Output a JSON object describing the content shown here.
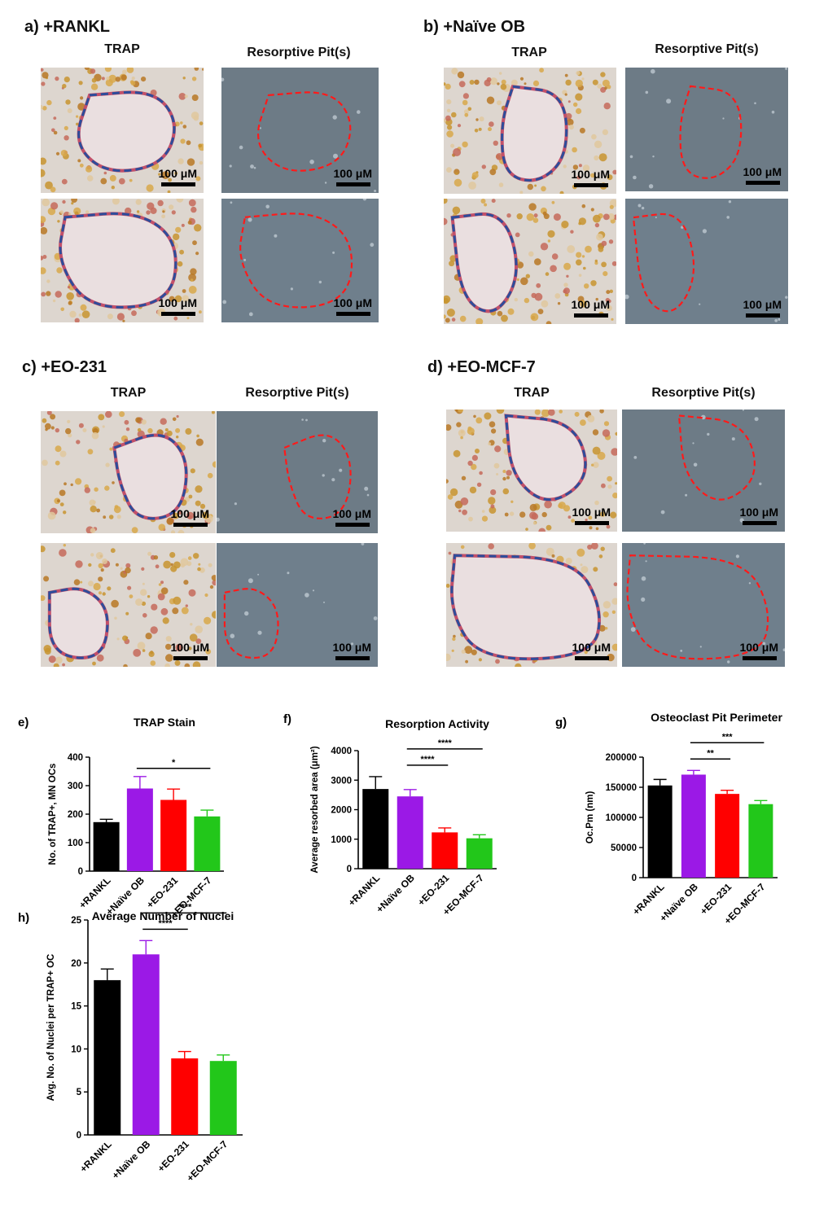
{
  "figure": {
    "panels": [
      {
        "id": "a",
        "label": "a) +RANKL",
        "left_heading": "TRAP",
        "right_heading": "Resorptive Pit(s)"
      },
      {
        "id": "b",
        "label": "b) +Naïve OB",
        "left_heading": "TRAP",
        "right_heading": "Resorptive Pit(s)"
      },
      {
        "id": "c",
        "label": "c) +EO-231",
        "left_heading": "TRAP",
        "right_heading": "Resorptive Pit(s)"
      },
      {
        "id": "d",
        "label": "d) +EO-MCF-7",
        "left_heading": "TRAP",
        "right_heading": "Resorptive Pit(s)"
      }
    ],
    "scale_bar_label": "100 μM"
  },
  "chart_data": [
    {
      "id": "e",
      "panel_letter": "e)",
      "type": "bar",
      "title": "TRAP Stain",
      "ylabel": "No. of TRAP+, MN OCs",
      "categories": [
        "+RANKL",
        "+Naïve OB",
        "+EO-231",
        "+EO-MCF-7"
      ],
      "values": [
        172,
        290,
        250,
        192
      ],
      "errors": [
        10,
        42,
        38,
        22
      ],
      "colors": [
        "#000000",
        "#9b19e6",
        "#ff0000",
        "#22c71a"
      ],
      "ylim": [
        0,
        400
      ],
      "yticks": [
        "0",
        "100",
        "200",
        "300",
        "400"
      ],
      "significance": [
        {
          "from": 1,
          "to": 3,
          "label": "*"
        }
      ]
    },
    {
      "id": "f",
      "panel_letter": "f)",
      "type": "bar",
      "title": "Resorption Activity",
      "ylabel": "Average resorbed area (μm²)",
      "categories": [
        "+RANKL",
        "+Naïve OB",
        "+EO-231",
        "+EO-MCF-7"
      ],
      "values": [
        2700,
        2450,
        1230,
        1030
      ],
      "errors": [
        420,
        230,
        150,
        120
      ],
      "colors": [
        "#000000",
        "#9b19e6",
        "#ff0000",
        "#22c71a"
      ],
      "ylim": [
        0,
        4000
      ],
      "yticks": [
        "0",
        "1000",
        "2000",
        "3000",
        "4000"
      ],
      "significance": [
        {
          "from": 1,
          "to": 2,
          "label": "****"
        },
        {
          "from": 1,
          "to": 3,
          "label": "****"
        }
      ]
    },
    {
      "id": "g",
      "panel_letter": "g)",
      "type": "bar",
      "title": "Osteoclast Pit Perimeter",
      "ylabel": "Oc.Pm (nm)",
      "categories": [
        "+RANKL",
        "+Naïve OB",
        "+EO-231",
        "+EO-MCF-7"
      ],
      "values": [
        153000,
        171000,
        139000,
        122000
      ],
      "errors": [
        10000,
        7000,
        6000,
        6000
      ],
      "colors": [
        "#000000",
        "#9b19e6",
        "#ff0000",
        "#22c71a"
      ],
      "ylim": [
        0,
        200000
      ],
      "yticks": [
        "0",
        "50000",
        "100000",
        "150000",
        "200000"
      ],
      "significance": [
        {
          "from": 1,
          "to": 2,
          "label": "**"
        },
        {
          "from": 1,
          "to": 3,
          "label": "***"
        }
      ]
    },
    {
      "id": "h",
      "panel_letter": "h)",
      "type": "bar",
      "title": "Average Number of Nuclei",
      "ylabel": "Avg. No. of Nuclei per TRAP+ OC",
      "categories": [
        "+RANKL",
        "+Naïve OB",
        "+EO-231",
        "+EO-MCF-7"
      ],
      "values": [
        18,
        21,
        8.9,
        8.6
      ],
      "errors": [
        1.3,
        1.6,
        0.8,
        0.7
      ],
      "colors": [
        "#000000",
        "#9b19e6",
        "#ff0000",
        "#22c71a"
      ],
      "ylim": [
        0,
        25
      ],
      "yticks": [
        "0",
        "5",
        "10",
        "15",
        "20",
        "25"
      ],
      "significance": [
        {
          "from": 1,
          "to": 2,
          "label": "****"
        },
        {
          "from": 1,
          "to": 3,
          "label": "****"
        }
      ]
    }
  ]
}
